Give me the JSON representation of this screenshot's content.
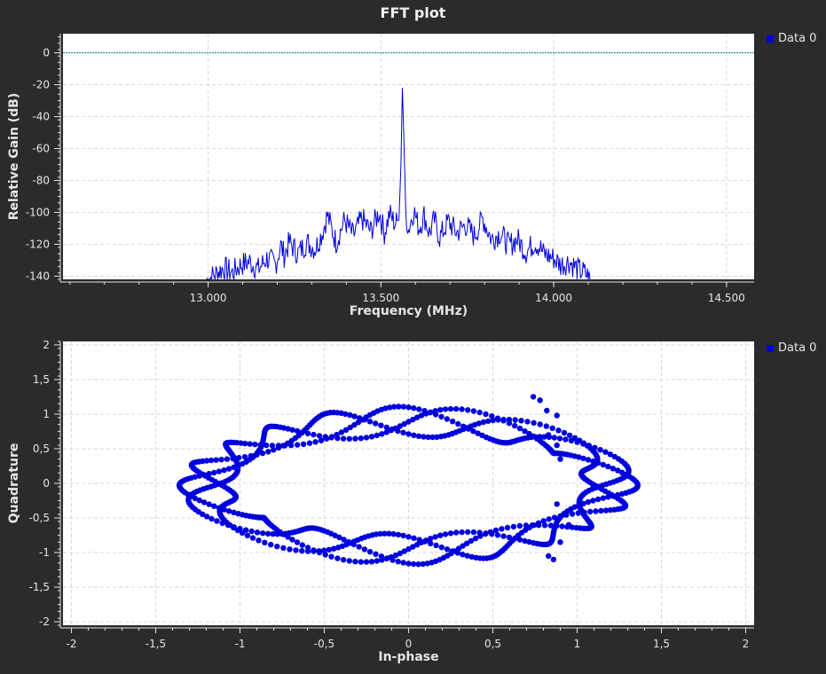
{
  "colors": {
    "background": "#2b2b2b",
    "canvas": "#ffffff",
    "grid": "#d9d9d9",
    "axis_text": "#e6e6e6",
    "trace": "#0000dd",
    "marker_line": "#008b8b"
  },
  "fft": {
    "title": "FFT plot",
    "legend": "Data 0",
    "xlabel": "Frequency (MHz)",
    "ylabel": "Relative Gain (dB)"
  },
  "constellation": {
    "legend": "Data 0",
    "xlabel": "In-phase",
    "ylabel": "Quadrature"
  },
  "chart_data": [
    {
      "type": "line",
      "title": "FFT plot",
      "xlabel": "Frequency (MHz)",
      "ylabel": "Relative Gain (dB)",
      "xlim": [
        12.58,
        14.58
      ],
      "ylim": [
        -142,
        12
      ],
      "x_ticks": [
        13.0,
        13.5,
        14.0,
        14.5
      ],
      "x_tick_labels": [
        "13.000",
        "13.500",
        "14.000",
        "14.500"
      ],
      "y_ticks": [
        0,
        -20,
        -40,
        -60,
        -80,
        -100,
        -120,
        -140
      ],
      "y_tick_labels": [
        "0",
        "-20",
        "-40",
        "-60",
        "-80",
        "-100",
        "-120",
        "-140"
      ],
      "grid": true,
      "legend_position": "right",
      "reference_line_y": 0,
      "series": [
        {
          "name": "Data 0",
          "peak_x": 13.56,
          "peak_y": -22,
          "x": [
            12.995,
            13.02,
            13.045,
            13.07,
            13.095,
            13.12,
            13.145,
            13.17,
            13.195,
            13.21,
            13.22,
            13.235,
            13.26,
            13.285,
            13.31,
            13.33,
            13.345,
            13.37,
            13.395,
            13.42,
            13.445,
            13.47,
            13.495,
            13.51,
            13.525,
            13.54,
            13.552,
            13.558,
            13.562,
            13.566,
            13.572,
            13.58,
            13.595,
            13.61,
            13.625,
            13.64,
            13.655,
            13.67,
            13.695,
            13.72,
            13.745,
            13.77,
            13.795,
            13.82,
            13.845,
            13.87,
            13.895,
            13.92,
            13.945,
            13.96,
            13.97,
            14.0,
            14.02,
            14.045,
            14.07,
            14.095,
            14.105
          ],
          "y": [
            -142,
            -138,
            -134,
            -137,
            -132,
            -130,
            -135,
            -128,
            -132,
            -120,
            -126,
            -118,
            -125,
            -118,
            -122,
            -112,
            -101,
            -118,
            -104,
            -114,
            -103,
            -111,
            -99,
            -112,
            -100,
            -106,
            -105,
            -70,
            -22,
            -50,
            -100,
            -110,
            -98,
            -109,
            -101,
            -112,
            -104,
            -115,
            -105,
            -112,
            -107,
            -114,
            -103,
            -116,
            -112,
            -120,
            -116,
            -124,
            -118,
            -121,
            -125,
            -128,
            -132,
            -130,
            -135,
            -138,
            -142
          ]
        }
      ]
    },
    {
      "type": "scatter",
      "xlabel": "In-phase",
      "ylabel": "Quadrature",
      "xlim": [
        -2.05,
        2.05
      ],
      "ylim": [
        -2.05,
        2.05
      ],
      "x_ticks": [
        -2,
        -1.5,
        -1,
        -0.5,
        0,
        0.5,
        1,
        1.5,
        2
      ],
      "x_tick_labels": [
        "-2",
        "-1,5",
        "-1",
        "-0,5",
        "0",
        "0,5",
        "1",
        "1,5",
        "2"
      ],
      "y_ticks": [
        2,
        1.5,
        1,
        0.5,
        0,
        -0.5,
        -1,
        -1.5,
        -2
      ],
      "y_tick_labels": [
        "2",
        "1,5",
        "1",
        "0,5",
        "0",
        "-0,5",
        "-1",
        "-1,5",
        "-2"
      ],
      "grid": true,
      "legend_position": "right",
      "series": [
        {
          "name": "Data 0",
          "rx": 1.2,
          "ry": 0.92,
          "x_offset": 0.0,
          "y_offset": -0.03,
          "wobble_amplitude_x": 0.16,
          "wobble_amplitude_y": 0.22,
          "wobble_lobes": 6,
          "traces": 3,
          "trace_phase_offsets": [
            0.0,
            0.35,
            0.7
          ],
          "x": [
            -0.72,
            -0.95,
            -1.25,
            -1.35,
            -1.05,
            -0.75,
            -0.45,
            -0.1,
            0.2,
            0.55,
            0.85,
            1.1,
            1.2,
            1.3,
            1.35,
            1.2,
            0.95,
            0.6,
            0.3,
            0.0,
            -0.35,
            -0.65,
            -1.0,
            -1.2
          ],
          "y": [
            0.7,
            0.8,
            0.3,
            -0.1,
            -0.6,
            -1.1,
            -1.3,
            -1.35,
            -1.25,
            -1.05,
            -0.7,
            -0.3,
            0.1,
            0.45,
            0.0,
            0.75,
            1.15,
            1.25,
            1.32,
            1.2,
            1.1,
            1.15,
            0.85,
            0.45
          ]
        }
      ]
    }
  ]
}
